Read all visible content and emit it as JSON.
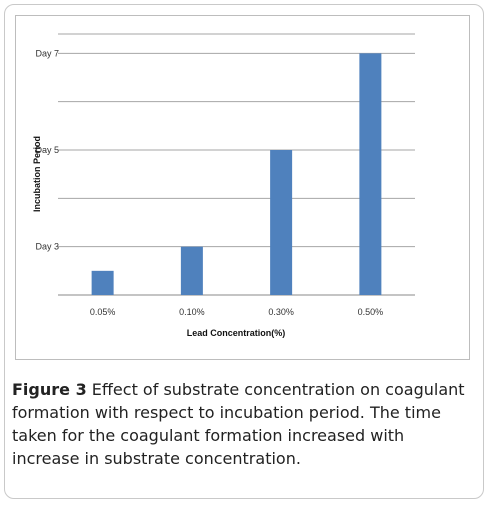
{
  "chart_data": {
    "type": "bar",
    "categories": [
      "0.05%",
      "0.10%",
      "0.30%",
      "0.50%"
    ],
    "values": [
      2.5,
      3.0,
      5.0,
      7.0
    ],
    "xlabel": "Lead Concentration(%)",
    "ylabel": "Incubation Period",
    "ylim": [
      2,
      7.4
    ],
    "yticks": [
      {
        "value": 3,
        "label": "Day 3"
      },
      {
        "value": 5,
        "label": "Day 5"
      },
      {
        "value": 7,
        "label": "Day 7"
      }
    ],
    "gridlines": [
      2,
      3,
      4,
      5,
      6,
      7,
      7.4
    ],
    "grid": true,
    "legend": "none",
    "bar_color": "#4f81bd"
  },
  "caption": {
    "label": "Figure 3",
    "text": "Effect of substrate concentration on coagulant formation with respect to incubation period. The time taken for the coagulant formation increased with increase in substrate concentration."
  }
}
